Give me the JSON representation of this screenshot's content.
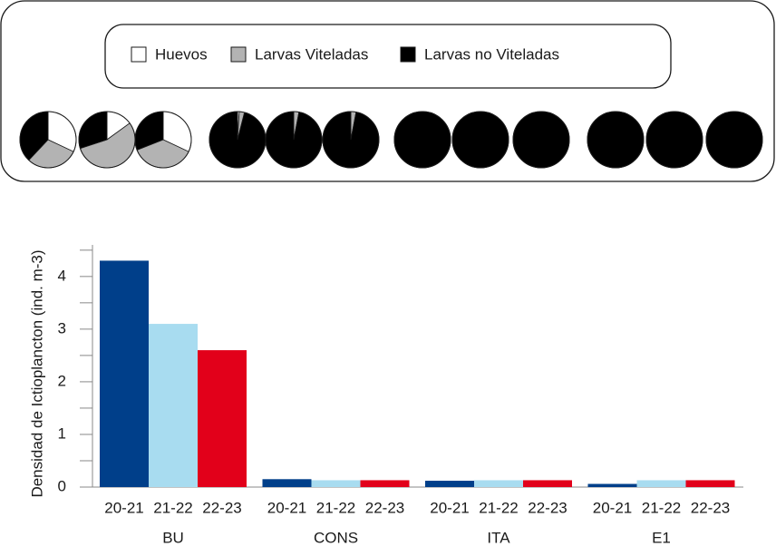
{
  "chart_data": [
    {
      "type": "pie",
      "series": [
        {
          "name": "Huevos",
          "color": "#ffffff",
          "values": [
            32,
            15,
            32,
            1,
            0,
            0,
            0,
            0,
            0,
            0,
            0,
            0
          ]
        },
        {
          "name": "Larvas Viteladas",
          "color": "#b3b3b3",
          "values": [
            30,
            55,
            37,
            3,
            3,
            3,
            0,
            0,
            0,
            0,
            0,
            0
          ]
        },
        {
          "name": "Larvas no Viteladas",
          "color": "#000000",
          "values": [
            38,
            30,
            31,
            96,
            97,
            97,
            100,
            100,
            100,
            100,
            100,
            100
          ]
        }
      ]
    },
    {
      "type": "bar",
      "y_label": "Densidad de Ictioplancton (ind. m-3)",
      "categories": [
        "BU",
        "CONS",
        "ITA",
        "E1"
      ],
      "series": [
        {
          "name": "20-21",
          "color": "#003f8a",
          "values": [
            4.3,
            0.15,
            0.12,
            0.06
          ]
        },
        {
          "name": "21-22",
          "color": "#a8dcf0",
          "values": [
            3.1,
            0.13,
            0.13,
            0.13
          ]
        },
        {
          "name": "22-23",
          "color": "#e2001a",
          "values": [
            2.6,
            0.13,
            0.13,
            0.13
          ]
        }
      ],
      "ylim": [
        0,
        4.6
      ],
      "yticks": [
        0,
        1,
        2,
        3,
        4
      ],
      "yticks_minor": [
        0.5,
        1.5,
        2.5,
        3.5,
        4.5
      ]
    }
  ]
}
